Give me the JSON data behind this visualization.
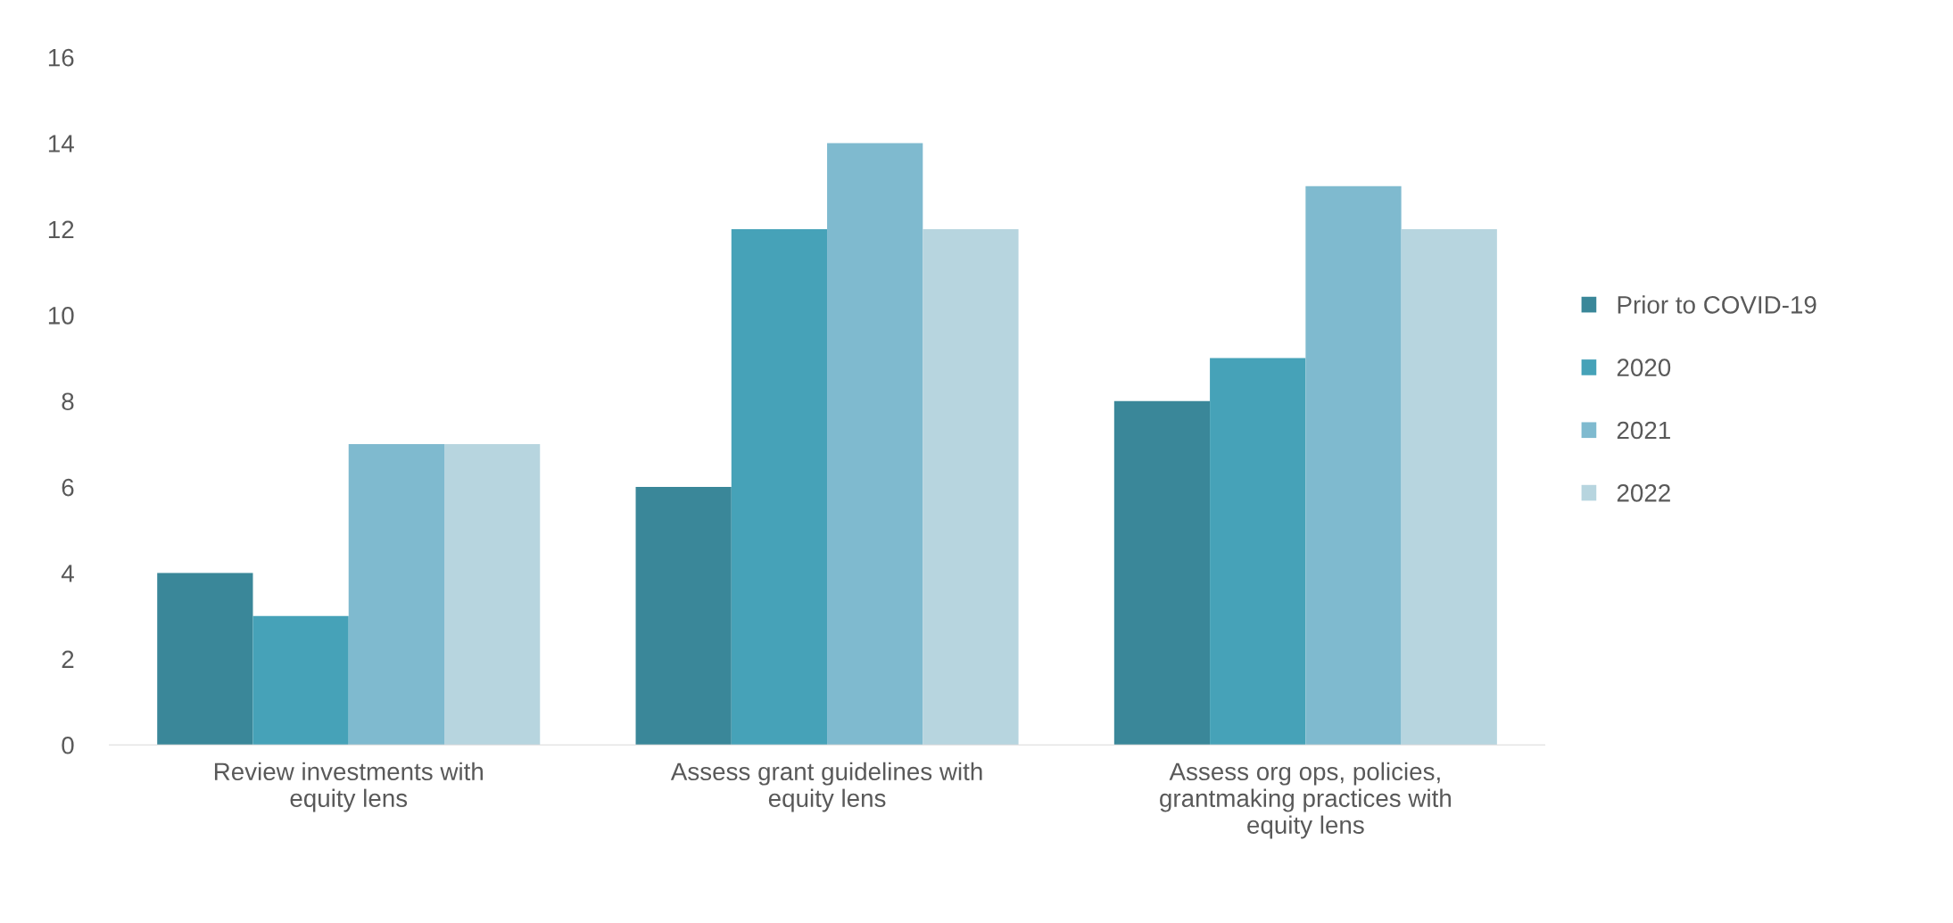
{
  "chart_data": {
    "type": "bar",
    "categories": [
      "Review investments with equity lens",
      "Assess grant guidelines with equity lens",
      "Assess org ops, policies, grantmaking practices with equity lens"
    ],
    "series": [
      {
        "name": "Prior to COVID-19",
        "color": "#3a8799",
        "values": [
          4,
          6,
          8
        ]
      },
      {
        "name": "2020",
        "color": "#46a2b8",
        "values": [
          3,
          12,
          9
        ]
      },
      {
        "name": "2021",
        "color": "#7fbacf",
        "values": [
          7,
          14,
          13
        ]
      },
      {
        "name": "2022",
        "color": "#b7d5df",
        "values": [
          7,
          12,
          12
        ]
      }
    ],
    "ylim": [
      0,
      16
    ],
    "yticks": [
      0,
      2,
      4,
      6,
      8,
      10,
      12,
      14,
      16
    ],
    "grid": false,
    "legend": "right"
  }
}
